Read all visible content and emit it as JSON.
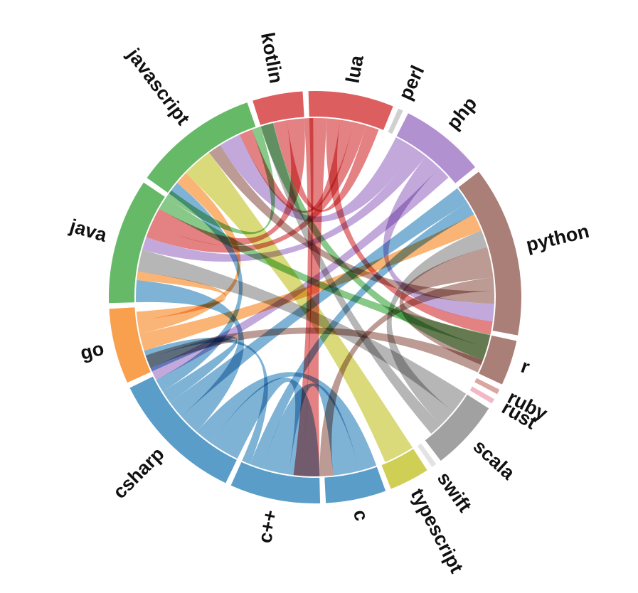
{
  "chart_data": {
    "type": "chord",
    "groups": [
      {
        "label": "c",
        "value": 12,
        "color": "#5b9dc9"
      },
      {
        "label": "typescript",
        "value": 8,
        "color": "#cfcf55"
      },
      {
        "label": "swift",
        "value": 1,
        "color": "#e3e3e3"
      },
      {
        "label": "scala",
        "value": 14,
        "color": "#a1a1a1"
      },
      {
        "label": "rust",
        "value": 1,
        "color": "#f2b8c6"
      },
      {
        "label": "ruby",
        "value": 1,
        "color": "#d9a7a0"
      },
      {
        "label": "r",
        "value": 9,
        "color": "#aa7f77"
      },
      {
        "label": "python",
        "value": 34,
        "color": "#aa7f77"
      },
      {
        "label": "php",
        "value": 17,
        "color": "#b291d1"
      },
      {
        "label": "perl",
        "value": 1,
        "color": "#d0d0d0"
      },
      {
        "label": "lua",
        "value": 17,
        "color": "#dc5e5f"
      },
      {
        "label": "kotlin",
        "value": 10,
        "color": "#dc5e5f"
      },
      {
        "label": "javascript",
        "value": 25,
        "color": "#66b966"
      },
      {
        "label": "java",
        "value": 25,
        "color": "#66b966"
      },
      {
        "label": "go",
        "value": 15,
        "color": "#f9a04f"
      },
      {
        "label": "csharp",
        "value": 27,
        "color": "#5b9dc9"
      },
      {
        "label": "c++",
        "value": 18,
        "color": "#5b9dc9"
      }
    ],
    "links": [
      {
        "source": "csharp",
        "target": "c++",
        "value": 7,
        "color": "#5b9dc9"
      },
      {
        "source": "csharp",
        "target": "c",
        "value": 4,
        "color": "#5b9dc9"
      },
      {
        "source": "csharp",
        "target": "java",
        "value": 5,
        "color": "#5b9dc9"
      },
      {
        "source": "csharp",
        "target": "python",
        "value": 4,
        "color": "#5b9dc9"
      },
      {
        "source": "csharp",
        "target": "go",
        "value": 3,
        "color": "#5b9dc9"
      },
      {
        "source": "csharp",
        "target": "javascript",
        "value": 3,
        "color": "#5b9dc9"
      },
      {
        "source": "c++",
        "target": "c",
        "value": 6,
        "color": "#5b9dc9"
      },
      {
        "source": "c++",
        "target": "python",
        "value": 3,
        "color": "#5b9dc9"
      },
      {
        "source": "c++",
        "target": "go",
        "value": 2,
        "color": "#5b9dc9"
      },
      {
        "source": "go",
        "target": "python",
        "value": 4,
        "color": "#f9a04f"
      },
      {
        "source": "go",
        "target": "javascript",
        "value": 3,
        "color": "#f9a04f"
      },
      {
        "source": "go",
        "target": "java",
        "value": 2,
        "color": "#f9a04f"
      },
      {
        "source": "typescript",
        "target": "javascript",
        "value": 7,
        "color": "#cfcf55"
      },
      {
        "source": "scala",
        "target": "java",
        "value": 5,
        "color": "#a1a1a1"
      },
      {
        "source": "scala",
        "target": "python",
        "value": 4,
        "color": "#a1a1a1"
      },
      {
        "source": "scala",
        "target": "kotlin",
        "value": 3,
        "color": "#a1a1a1"
      },
      {
        "source": "r",
        "target": "python",
        "value": 7,
        "color": "#aa7f77"
      },
      {
        "source": "python",
        "target": "c",
        "value": 3,
        "color": "#aa7f77"
      },
      {
        "source": "python",
        "target": "javascript",
        "value": 3,
        "color": "#aa7f77"
      },
      {
        "source": "php",
        "target": "javascript",
        "value": 5,
        "color": "#b291d1"
      },
      {
        "source": "php",
        "target": "java",
        "value": 3,
        "color": "#b291d1"
      },
      {
        "source": "php",
        "target": "python",
        "value": 4,
        "color": "#b291d1"
      },
      {
        "source": "php",
        "target": "csharp",
        "value": 3,
        "color": "#b291d1"
      },
      {
        "source": "lua",
        "target": "c",
        "value": 4,
        "color": "#dc5e5f"
      },
      {
        "source": "lua",
        "target": "python",
        "value": 3,
        "color": "#dc5e5f"
      },
      {
        "source": "lua",
        "target": "javascript",
        "value": 3,
        "color": "#dc5e5f"
      },
      {
        "source": "lua",
        "target": "java",
        "value": 3,
        "color": "#dc5e5f"
      },
      {
        "source": "lua",
        "target": "kotlin",
        "value": 3,
        "color": "#dc5e5f"
      },
      {
        "source": "kotlin",
        "target": "java",
        "value": 4,
        "color": "#dc5e5f"
      },
      {
        "source": "kotlin",
        "target": "c",
        "value": 2,
        "color": "#dc5e5f"
      },
      {
        "source": "java",
        "target": "python",
        "value": 3,
        "color": "#66b966"
      },
      {
        "source": "java",
        "target": "javascript",
        "value": 2,
        "color": "#66b966"
      },
      {
        "source": "javascript",
        "target": "python",
        "value": 3,
        "color": "#66b966"
      },
      {
        "source": "python",
        "target": "csharp",
        "value": 3,
        "color": "#aa7f77"
      }
    ]
  }
}
